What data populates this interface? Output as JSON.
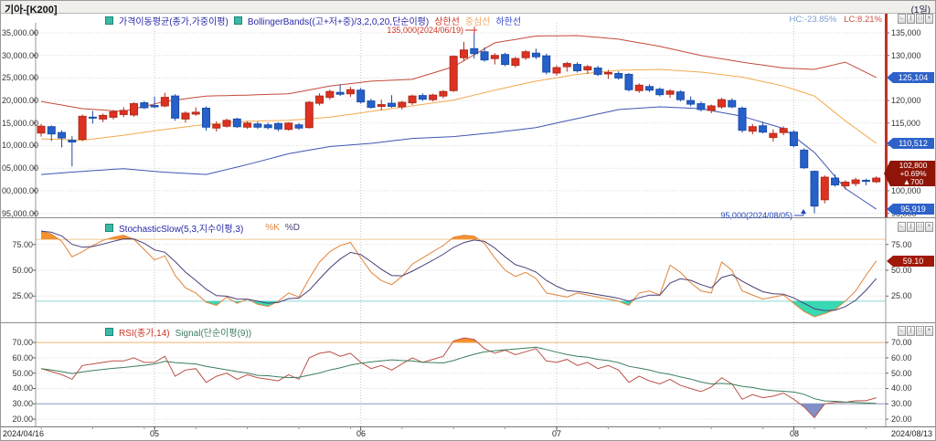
{
  "window": {
    "title": "기아-[K200]",
    "period_label": "(1일)"
  },
  "panel_buttons": [
    "∟",
    "|",
    "□",
    "×"
  ],
  "main_panel": {
    "legend": {
      "ma_label": "가격이동평균(종가,가중이평)",
      "bb_label": "BollingerBands((고+저+중)/3,2,0,20,단순이평)",
      "upper_label": "상한선",
      "middle_label": "중심선",
      "lower_label": "하한선"
    },
    "hc_label": "HC:-23.85%",
    "lc_label": "LC:8.21%",
    "annotation_high": "135,000(2024/06/19)",
    "annotation_low": "95,000(2024/08/05)",
    "y_left": [
      "35,000.00",
      "30,000.00",
      "25,000.00",
      "20,000.00",
      "15,000.00",
      "10,000.00",
      "05,000.00",
      "00,000.00",
      "95,000.00"
    ],
    "y_right": [
      "135,000",
      "130,000",
      "120,000",
      "115,000",
      "110,000",
      "100,000",
      "95,000"
    ],
    "badges": {
      "upper": "125,104",
      "middle": "110,512",
      "lower": "95,919",
      "price": "102,800",
      "change_pct": "+0.69%",
      "change_amt": "▲700"
    }
  },
  "stoch_panel": {
    "legend": {
      "name": "StochasticSlow(5,3,지수이평,3)",
      "k": "%K",
      "d": "%D"
    },
    "y_ticks": [
      "75.00",
      "50.00",
      "25.00"
    ],
    "badge": "59.10"
  },
  "rsi_panel": {
    "legend": {
      "name": "RSI(종가,14)",
      "signal": "Signal(단순이평(9))"
    },
    "y_ticks": [
      "70.00",
      "60.00",
      "50.00",
      "40.00",
      "30.00",
      "20.00"
    ]
  },
  "x_axis": {
    "start": "2024/04/16",
    "months": [
      "05",
      "06",
      "07",
      "08"
    ],
    "end": "2024/08/13"
  },
  "colors": {
    "up": "#dd3222",
    "up_stroke": "#b02a1a",
    "down": "#2660c8",
    "down_stroke": "#1b4ea8",
    "bb_upper": "#c44a3a",
    "bb_middle": "#f2a94e",
    "bb_lower": "#4054b2",
    "stoch_k": "#e0843a",
    "stoch_d": "#4a3f77",
    "stoch_fill_high": "#f5922e",
    "stoch_fill_low": "#38d8b2",
    "stoch_ob_line": "#f0c890",
    "stoch_os_line": "#8ad8d8",
    "rsi": "#bb5248",
    "rsi_signal": "#3c7d5c",
    "rsi_ob_line": "#f0b070",
    "rsi_os_line": "#8898b8",
    "rsi_fill_high": "#f5922e",
    "rsi_fill_low": "#8090c8",
    "badge_blue": "#2e62c8",
    "badge_red": "#a01808",
    "axis_red": "#c03028",
    "grid": "#d9d9d9",
    "month_grid": "#c6c6c6",
    "hc": "#7b9bd2",
    "lc": "#d05040",
    "annotation_high": "#cc3322",
    "annotation_low": "#2244bb"
  },
  "chart_data": {
    "type": "candlestick",
    "symbol": "기아 [K200]",
    "interval": "1일",
    "y_range_main": [
      93000,
      137500
    ],
    "high_point": {
      "date": "2024/06/19",
      "price": 135000
    },
    "low_point": {
      "date": "2024/08/05",
      "price": 95000
    },
    "last": {
      "price": 102800,
      "change": 700,
      "change_pct": 0.69
    },
    "dates": [
      "04/16",
      "04/17",
      "04/18",
      "04/19",
      "04/22",
      "04/23",
      "04/24",
      "04/25",
      "04/26",
      "04/29",
      "04/30",
      "05/02",
      "05/03",
      "05/07",
      "05/08",
      "05/09",
      "05/10",
      "05/13",
      "05/14",
      "05/16",
      "05/17",
      "05/20",
      "05/21",
      "05/22",
      "05/23",
      "05/24",
      "05/27",
      "05/28",
      "05/29",
      "05/30",
      "05/31",
      "06/03",
      "06/04",
      "06/05",
      "06/07",
      "06/10",
      "06/11",
      "06/12",
      "06/13",
      "06/14",
      "06/17",
      "06/18",
      "06/19",
      "06/20",
      "06/21",
      "06/24",
      "06/25",
      "06/26",
      "06/27",
      "06/28",
      "07/01",
      "07/02",
      "07/03",
      "07/04",
      "07/05",
      "07/08",
      "07/09",
      "07/10",
      "07/11",
      "07/12",
      "07/15",
      "07/16",
      "07/17",
      "07/18",
      "07/19",
      "07/22",
      "07/23",
      "07/24",
      "07/25",
      "07/26",
      "07/29",
      "07/30",
      "07/31",
      "08/01",
      "08/02",
      "08/05",
      "08/06",
      "08/07",
      "08/08",
      "08/09",
      "08/12",
      "08/13"
    ],
    "open": [
      112800,
      114200,
      112900,
      111200,
      111400,
      116300,
      115900,
      116300,
      116900,
      116800,
      119500,
      118900,
      118800,
      121000,
      115900,
      117000,
      118300,
      113900,
      114300,
      115900,
      114100,
      114800,
      114600,
      114900,
      113600,
      114600,
      114000,
      119400,
      120700,
      121800,
      121500,
      122300,
      119900,
      118700,
      119400,
      118600,
      119500,
      121100,
      120200,
      121000,
      122200,
      129500,
      131500,
      130800,
      129300,
      130200,
      127800,
      129500,
      130500,
      129900,
      126100,
      127500,
      128000,
      126800,
      127200,
      125900,
      126000,
      125800,
      122200,
      123100,
      122500,
      121400,
      121900,
      120000,
      119300,
      117800,
      118600,
      120000,
      118300,
      113200,
      114400,
      111800,
      112900,
      113000,
      109000,
      104300,
      98000,
      102800,
      101100,
      101600,
      102300,
      102000
    ],
    "high": [
      114800,
      114500,
      113400,
      112100,
      116900,
      117700,
      117100,
      117900,
      118500,
      119600,
      119900,
      120900,
      121700,
      121400,
      117600,
      118500,
      118700,
      115400,
      116000,
      116200,
      115400,
      115300,
      115100,
      115200,
      115200,
      115000,
      119900,
      121600,
      122400,
      123600,
      123000,
      122800,
      120400,
      120200,
      121200,
      119900,
      121300,
      121600,
      121500,
      122300,
      130000,
      133000,
      135000,
      131800,
      130500,
      130600,
      129700,
      131200,
      131500,
      130400,
      127800,
      128600,
      128500,
      127900,
      127700,
      126800,
      126500,
      126100,
      123800,
      123600,
      122900,
      122500,
      122300,
      120900,
      119800,
      119100,
      120600,
      120500,
      118700,
      114800,
      115300,
      113600,
      114300,
      113400,
      109400,
      104500,
      103400,
      103600,
      102300,
      102900,
      102700,
      103200
    ],
    "low": [
      112000,
      111000,
      109600,
      105400,
      111000,
      114900,
      115200,
      115800,
      116300,
      116400,
      118100,
      118300,
      118500,
      115500,
      115100,
      116600,
      113300,
      113100,
      114000,
      113900,
      113700,
      113700,
      113600,
      113200,
      113300,
      113500,
      113800,
      118900,
      120200,
      121000,
      120800,
      119300,
      118200,
      117800,
      118400,
      118000,
      119000,
      119900,
      119800,
      120500,
      121900,
      128700,
      129300,
      128600,
      128000,
      127600,
      127300,
      129000,
      129200,
      125800,
      125500,
      126400,
      126200,
      125900,
      125400,
      124800,
      124600,
      122000,
      121700,
      121900,
      120900,
      120600,
      119800,
      118700,
      117600,
      117200,
      118200,
      118300,
      112900,
      112500,
      112700,
      110900,
      112300,
      109600,
      104800,
      95000,
      97200,
      100900,
      100300,
      101000,
      101200,
      101700
    ],
    "close": [
      114300,
      112600,
      111700,
      110800,
      116500,
      116100,
      116700,
      117500,
      117800,
      119300,
      118400,
      118600,
      120700,
      116100,
      117200,
      117400,
      114100,
      114700,
      115600,
      114200,
      115000,
      114100,
      114000,
      113700,
      115000,
      113900,
      119600,
      121000,
      122000,
      121400,
      122400,
      119700,
      118500,
      119100,
      118700,
      119600,
      121000,
      120300,
      121200,
      122000,
      129800,
      131200,
      130400,
      129000,
      130000,
      128000,
      129300,
      130800,
      129700,
      126300,
      127300,
      128200,
      126600,
      127500,
      125800,
      126200,
      125000,
      122400,
      123400,
      122300,
      121300,
      122100,
      120200,
      119200,
      118000,
      118800,
      120200,
      118600,
      113400,
      114200,
      113000,
      112700,
      113800,
      110000,
      105100,
      96600,
      103000,
      101300,
      101900,
      102400,
      102100,
      102800
    ],
    "bollinger": {
      "period": 20,
      "mult": 2,
      "anchor_idx": [
        0,
        4,
        8,
        12,
        16,
        20,
        24,
        28,
        32,
        36,
        40,
        44,
        48,
        52,
        56,
        60,
        64,
        68,
        72,
        75,
        78,
        81
      ],
      "upper": [
        119800,
        118200,
        117600,
        119800,
        121000,
        121200,
        121500,
        123200,
        124300,
        124700,
        127500,
        132800,
        134300,
        134400,
        133600,
        132000,
        130000,
        128500,
        127200,
        126900,
        128500,
        125104
      ],
      "middle": [
        111500,
        111200,
        112300,
        113600,
        114700,
        115400,
        115600,
        116300,
        117600,
        118800,
        120100,
        122300,
        124300,
        125800,
        126700,
        126900,
        126300,
        125200,
        123200,
        121000,
        115500,
        110512
      ],
      "lower": [
        103600,
        104300,
        104900,
        104100,
        103600,
        105800,
        108200,
        109800,
        110500,
        111600,
        112000,
        112900,
        114000,
        116000,
        118000,
        118600,
        118200,
        116500,
        113800,
        108500,
        100500,
        95919
      ],
      "last": {
        "upper": 125104,
        "middle": 110512,
        "lower": 95919
      }
    },
    "stochastic": {
      "overbought": 80,
      "oversold": 20,
      "last_k": 59.1,
      "k": [
        88,
        85,
        78,
        63,
        68,
        74,
        79,
        82,
        84,
        80,
        70,
        60,
        64,
        45,
        33,
        28,
        19,
        16,
        24,
        18,
        22,
        17,
        15,
        20,
        28,
        24,
        42,
        58,
        68,
        74,
        77,
        62,
        48,
        40,
        36,
        44,
        56,
        62,
        68,
        74,
        82,
        84,
        83,
        76,
        62,
        50,
        44,
        48,
        42,
        28,
        26,
        24,
        28,
        26,
        24,
        22,
        20,
        16,
        28,
        30,
        26,
        55,
        48,
        38,
        30,
        28,
        58,
        50,
        30,
        26,
        22,
        24,
        26,
        18,
        10,
        5,
        8,
        12,
        20,
        30,
        45,
        59.1
      ]
    },
    "rsi": {
      "overbought": 70,
      "oversold": 30,
      "signal_period": 9,
      "values": [
        53,
        51,
        49,
        46,
        55,
        56,
        57,
        58,
        58,
        60,
        57,
        57,
        61,
        48,
        52,
        53,
        44,
        48,
        50,
        46,
        49,
        47,
        46,
        45,
        49,
        46,
        60,
        63,
        64,
        61,
        63,
        57,
        53,
        55,
        52,
        56,
        60,
        57,
        59,
        61,
        71,
        73,
        72,
        66,
        63,
        65,
        62,
        64,
        66,
        58,
        57,
        59,
        55,
        57,
        53,
        55,
        52,
        44,
        48,
        45,
        43,
        46,
        42,
        40,
        38,
        41,
        47,
        43,
        33,
        36,
        34,
        35,
        37,
        33,
        28,
        21,
        30,
        31,
        31,
        32,
        32,
        34
      ]
    }
  }
}
